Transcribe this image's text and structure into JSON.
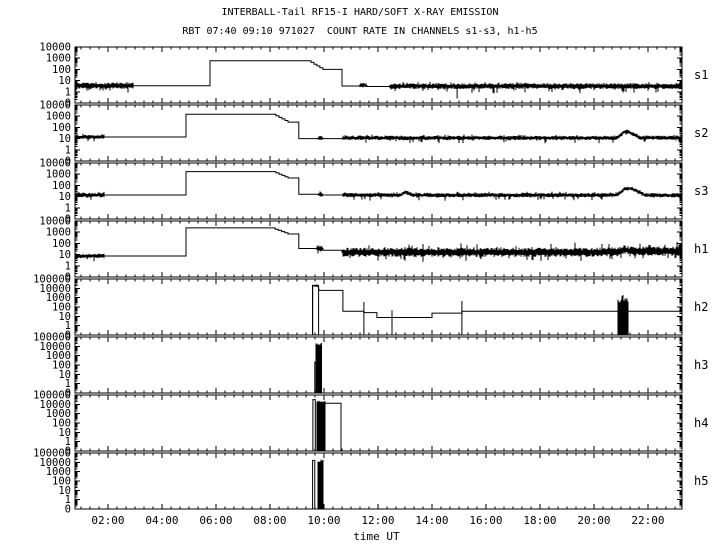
{
  "chart_data": {
    "type": "line",
    "title": "INTERBALL-Tail RF15-I HARD/SOFT X-RAY EMISSION",
    "subtitle": "RBT 07:40 09:10 971027  COUNT RATE IN CHANNELS s1-s3, h1-h5",
    "xlabel": "time UT",
    "x_range_hours": [
      0.78,
      23.26
    ],
    "x_minor_step_minutes": 20,
    "x_ticks": [
      {
        "hour": 2,
        "label": "02:00"
      },
      {
        "hour": 4,
        "label": "04:00"
      },
      {
        "hour": 6,
        "label": "06:00"
      },
      {
        "hour": 8,
        "label": "08:00"
      },
      {
        "hour": 10,
        "label": "10:00"
      },
      {
        "hour": 12,
        "label": "12:00"
      },
      {
        "hour": 14,
        "label": "14:00"
      },
      {
        "hour": 16,
        "label": "16:00"
      },
      {
        "hour": 18,
        "label": "18:00"
      },
      {
        "hour": 20,
        "label": "20:00"
      },
      {
        "hour": 22,
        "label": "22:00"
      }
    ],
    "ylabels_small": [
      "10000",
      "1000",
      "100",
      "10",
      "1",
      "0"
    ],
    "ylabels_large": [
      "100000",
      "10000",
      "1000",
      "100",
      "10",
      "1",
      "0"
    ],
    "y_axis_note": "log scale, counts; bottom tick labeled 0 sits at 0.1",
    "legend_position": "right-of-each-panel",
    "grid": false,
    "panels": [
      {
        "id": "s1",
        "ymax": 10000,
        "ymin": 0.1,
        "ylabels": "small",
        "segments": [
          {
            "type": "noisy",
            "t0": 0.78,
            "t1": 2.93,
            "v": 3.5,
            "band": 0.28,
            "sd": 0.45,
            "su": 0.12
          },
          {
            "type": "flat",
            "t0": 2.93,
            "t1": 5.78,
            "v": 3.5
          },
          {
            "type": "flat",
            "t0": 5.78,
            "t1": 9.41,
            "v": 600
          },
          {
            "type": "stair",
            "t0": 9.41,
            "t1": 9.96,
            "v0": 600,
            "v1": 100
          },
          {
            "type": "flat",
            "t0": 9.96,
            "t1": 10.67,
            "v": 100
          },
          {
            "type": "flat",
            "t0": 10.67,
            "t1": 11.33,
            "v": 3.3
          },
          {
            "type": "noisy",
            "t0": 11.33,
            "t1": 11.59,
            "v": 3.6,
            "band": 0.22,
            "sd": 0.1,
            "su": 0.1
          },
          {
            "type": "flat",
            "t0": 11.59,
            "t1": 12.44,
            "v": 3.0
          },
          {
            "type": "noisy",
            "t0": 12.44,
            "t1": 23.26,
            "v": 3.2,
            "band": 0.26,
            "sd": 0.5,
            "su": 0.15
          },
          {
            "type": "spike",
            "t": 14.93,
            "v0": 0.25,
            "v1": 3.2
          }
        ]
      },
      {
        "id": "s2",
        "ymax": 10000,
        "ymin": 0.1,
        "ylabels": "small",
        "segments": [
          {
            "type": "noisy",
            "t0": 0.78,
            "t1": 1.89,
            "v": 14,
            "band": 0.18,
            "sd": 0.35,
            "su": 0.12
          },
          {
            "type": "flat",
            "t0": 1.89,
            "t1": 4.89,
            "v": 14
          },
          {
            "type": "flat",
            "t0": 4.89,
            "t1": 8.11,
            "v": 1500
          },
          {
            "type": "stair",
            "t0": 8.11,
            "t1": 8.67,
            "v0": 1500,
            "v1": 300
          },
          {
            "type": "flat",
            "t0": 8.67,
            "t1": 9.07,
            "v": 300
          },
          {
            "type": "flat",
            "t0": 9.07,
            "t1": 9.78,
            "v": 10
          },
          {
            "type": "noisy",
            "t0": 9.78,
            "t1": 9.96,
            "v": 11,
            "band": 0.2,
            "sd": 0.1,
            "su": 0.1
          },
          {
            "type": "flat",
            "t0": 9.96,
            "t1": 10.7,
            "v": 10
          },
          {
            "type": "noisy",
            "t0": 10.7,
            "t1": 20.85,
            "v": 11.5,
            "band": 0.2,
            "sd": 0.35,
            "su": 0.15
          },
          {
            "type": "noisy",
            "t0": 20.85,
            "t1": 21.1,
            "v": 11.5,
            "v1": 38,
            "band": 0.18,
            "sd": 0.1,
            "su": 0.1
          },
          {
            "type": "noisy",
            "t0": 21.1,
            "t1": 21.3,
            "v": 38,
            "band": 0.18,
            "sd": 0.1,
            "su": 0.1
          },
          {
            "type": "noisy",
            "t0": 21.3,
            "t1": 21.7,
            "v": 38,
            "v1": 12,
            "band": 0.18,
            "sd": 0.1,
            "su": 0.1
          },
          {
            "type": "noisy",
            "t0": 21.7,
            "t1": 23.26,
            "v": 12,
            "band": 0.2,
            "sd": 0.3,
            "su": 0.12
          }
        ]
      },
      {
        "id": "s3",
        "ymax": 10000,
        "ymin": 0.1,
        "ylabels": "small",
        "segments": [
          {
            "type": "noisy",
            "t0": 0.78,
            "t1": 1.89,
            "v": 14,
            "band": 0.2,
            "sd": 0.35,
            "su": 0.12
          },
          {
            "type": "flat",
            "t0": 1.89,
            "t1": 4.89,
            "v": 14
          },
          {
            "type": "flat",
            "t0": 4.89,
            "t1": 8.11,
            "v": 1700
          },
          {
            "type": "stair",
            "t0": 8.11,
            "t1": 8.67,
            "v0": 1700,
            "v1": 460
          },
          {
            "type": "flat",
            "t0": 8.67,
            "t1": 9.07,
            "v": 460
          },
          {
            "type": "flat",
            "t0": 9.07,
            "t1": 9.78,
            "v": 16
          },
          {
            "type": "noisy",
            "t0": 9.78,
            "t1": 9.96,
            "v": 15,
            "band": 0.22,
            "sd": 0.1,
            "su": 0.1
          },
          {
            "type": "flat",
            "t0": 9.96,
            "t1": 10.7,
            "v": 14
          },
          {
            "type": "noisy",
            "t0": 10.7,
            "t1": 12.85,
            "v": 13.5,
            "band": 0.2,
            "sd": 0.35,
            "su": 0.15
          },
          {
            "type": "noisy",
            "t0": 12.85,
            "t1": 13.0,
            "v": 13.5,
            "v1": 26,
            "band": 0.18,
            "sd": 0.1,
            "su": 0.1
          },
          {
            "type": "noisy",
            "t0": 13.0,
            "t1": 13.3,
            "v": 26,
            "v1": 13.5,
            "band": 0.18,
            "sd": 0.1,
            "su": 0.1
          },
          {
            "type": "noisy",
            "t0": 13.3,
            "t1": 20.85,
            "v": 13.5,
            "band": 0.2,
            "sd": 0.35,
            "su": 0.15
          },
          {
            "type": "noisy",
            "t0": 20.85,
            "t1": 21.15,
            "v": 13.5,
            "v1": 52,
            "band": 0.18,
            "sd": 0.1,
            "su": 0.1
          },
          {
            "type": "noisy",
            "t0": 21.15,
            "t1": 21.4,
            "v": 52,
            "band": 0.18,
            "sd": 0.1,
            "su": 0.1
          },
          {
            "type": "noisy",
            "t0": 21.4,
            "t1": 21.9,
            "v": 52,
            "v1": 13,
            "band": 0.18,
            "sd": 0.1,
            "su": 0.1
          },
          {
            "type": "noisy",
            "t0": 21.9,
            "t1": 23.26,
            "v": 13,
            "band": 0.2,
            "sd": 0.3,
            "su": 0.12
          }
        ]
      },
      {
        "id": "h1",
        "ymax": 10000,
        "ymin": 0.1,
        "ylabels": "small",
        "segments": [
          {
            "type": "noisy",
            "t0": 0.78,
            "t1": 1.89,
            "v": 7.5,
            "band": 0.2,
            "sd": 0.4,
            "su": 0.12
          },
          {
            "type": "flat",
            "t0": 1.89,
            "t1": 4.89,
            "v": 7.5
          },
          {
            "type": "flat",
            "t0": 4.89,
            "t1": 8.07,
            "v": 2400
          },
          {
            "type": "stair",
            "t0": 8.07,
            "t1": 8.67,
            "v0": 2400,
            "v1": 690
          },
          {
            "type": "flat",
            "t0": 8.67,
            "t1": 9.07,
            "v": 690
          },
          {
            "type": "flat",
            "t0": 9.07,
            "t1": 9.74,
            "v": 35
          },
          {
            "type": "noisy",
            "t0": 9.74,
            "t1": 9.96,
            "v": 35,
            "band": 0.3,
            "sd": 0.3,
            "su": 0.3
          },
          {
            "type": "flat",
            "t0": 9.96,
            "t1": 10.67,
            "v": 24
          },
          {
            "type": "noisy",
            "t0": 10.67,
            "t1": 20.85,
            "v": 16,
            "band": 0.42,
            "sd": 0.45,
            "su": 0.5
          },
          {
            "type": "noisy",
            "t0": 20.85,
            "t1": 21.1,
            "v": 16,
            "v1": 28,
            "band": 0.4,
            "sd": 0.4,
            "su": 0.45
          },
          {
            "type": "noisy",
            "t0": 21.1,
            "t1": 21.45,
            "v": 28,
            "v1": 20,
            "band": 0.4,
            "sd": 0.4,
            "su": 0.45
          },
          {
            "type": "noisy",
            "t0": 21.45,
            "t1": 23.26,
            "v": 20,
            "band": 0.42,
            "sd": 0.45,
            "su": 0.5
          }
        ]
      },
      {
        "id": "h2",
        "ymax": 100000,
        "ymin": 0.1,
        "ylabels": "large",
        "segments": [
          {
            "type": "spike",
            "t": 9.58,
            "v0": 0.1,
            "v1": 25000
          },
          {
            "type": "noisy",
            "t0": 9.58,
            "t1": 9.78,
            "v": 20000,
            "band": 0.12,
            "sd": 0.1,
            "su": 0.1
          },
          {
            "type": "spike",
            "t": 9.8,
            "v0": 0.1,
            "v1": 20000
          },
          {
            "type": "flat",
            "t0": 9.82,
            "t1": 10.7,
            "v": 6000
          },
          {
            "type": "flat",
            "t0": 10.7,
            "t1": 11.48,
            "v": 35
          },
          {
            "type": "spike",
            "t": 11.48,
            "v0": 0.1,
            "v1": 340
          },
          {
            "type": "flat",
            "t0": 11.48,
            "t1": 11.96,
            "v": 25
          },
          {
            "type": "flat",
            "t0": 11.96,
            "t1": 14.0,
            "v": 7.5
          },
          {
            "type": "spike",
            "t": 12.52,
            "v0": 0.1,
            "v1": 45
          },
          {
            "type": "flat",
            "t0": 14.0,
            "t1": 15.11,
            "v": 22
          },
          {
            "type": "spike",
            "t": 15.11,
            "v0": 0.1,
            "v1": 440
          },
          {
            "type": "flat",
            "t0": 15.11,
            "t1": 20.89,
            "v": 35
          },
          {
            "type": "burst",
            "t0": 20.89,
            "t1": 21.26,
            "vmin": 0.1,
            "vmax": 2000,
            "topvar": 0.9
          },
          {
            "type": "flat",
            "t0": 21.26,
            "t1": 23.26,
            "v": 35
          }
        ]
      },
      {
        "id": "h3",
        "ymax": 100000,
        "ymin": 0.1,
        "ylabels": "large",
        "segments": [
          {
            "type": "flat",
            "t0": 9.66,
            "t1": 9.73,
            "v": 200
          },
          {
            "type": "burst",
            "t0": 9.73,
            "t1": 9.86,
            "vmin": 0.1,
            "vmax": 26000,
            "topvar": 0.25
          },
          {
            "type": "spike",
            "t": 9.91,
            "v0": 0.1,
            "v1": 22000
          }
        ]
      },
      {
        "id": "h4",
        "ymax": 100000,
        "ymin": 0.1,
        "ylabels": "large",
        "segments": [
          {
            "type": "flat",
            "t0": 9.59,
            "t1": 9.68,
            "v": 32000
          },
          {
            "type": "burst",
            "t0": 9.76,
            "t1": 10.02,
            "vmin": 0.1,
            "vmax": 26000,
            "topvar": 0.2
          },
          {
            "type": "flat",
            "t0": 10.02,
            "t1": 10.63,
            "v": 13000
          }
        ]
      },
      {
        "id": "h5",
        "ymax": 100000,
        "ymin": 0.1,
        "ylabels": "large",
        "segments": [
          {
            "type": "flat",
            "t0": 9.58,
            "t1": 9.66,
            "v": 16000
          },
          {
            "type": "burst",
            "t0": 9.78,
            "t1": 9.93,
            "vmin": 0.1,
            "vmax": 20000,
            "topvar": 0.25
          }
        ]
      }
    ],
    "colors": {
      "foreground": "#000000",
      "background": "#ffffff"
    }
  }
}
